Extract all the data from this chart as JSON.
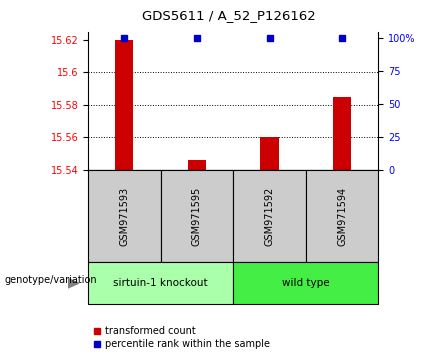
{
  "title": "GDS5611 / A_52_P126162",
  "samples": [
    "GSM971593",
    "GSM971595",
    "GSM971592",
    "GSM971594"
  ],
  "red_values": [
    15.62,
    15.546,
    15.56,
    15.585
  ],
  "blue_values": [
    100,
    100,
    100,
    100
  ],
  "ylim_left": [
    15.54,
    15.625
  ],
  "ylim_right": [
    0,
    105
  ],
  "yticks_left": [
    15.54,
    15.56,
    15.58,
    15.6,
    15.62
  ],
  "ytick_labels_left": [
    "15.54",
    "15.56",
    "15.58",
    "15.6",
    "15.62"
  ],
  "yticks_right": [
    0,
    25,
    50,
    75,
    100
  ],
  "ytick_labels_right": [
    "0",
    "25",
    "50",
    "75",
    "100%"
  ],
  "groups": [
    {
      "label": "sirtuin-1 knockout",
      "indices": [
        0,
        1
      ],
      "color": "#aaffaa"
    },
    {
      "label": "wild type",
      "indices": [
        2,
        3
      ],
      "color": "#44ee44"
    }
  ],
  "genotype_label": "genotype/variation",
  "legend_red": "transformed count",
  "legend_blue": "percentile rank within the sample",
  "bar_color": "#cc0000",
  "dot_color": "#0000cc",
  "sample_box_color": "#cccccc",
  "baseline": 15.54,
  "gridlines": [
    15.56,
    15.58,
    15.6
  ],
  "bar_width": 0.25
}
